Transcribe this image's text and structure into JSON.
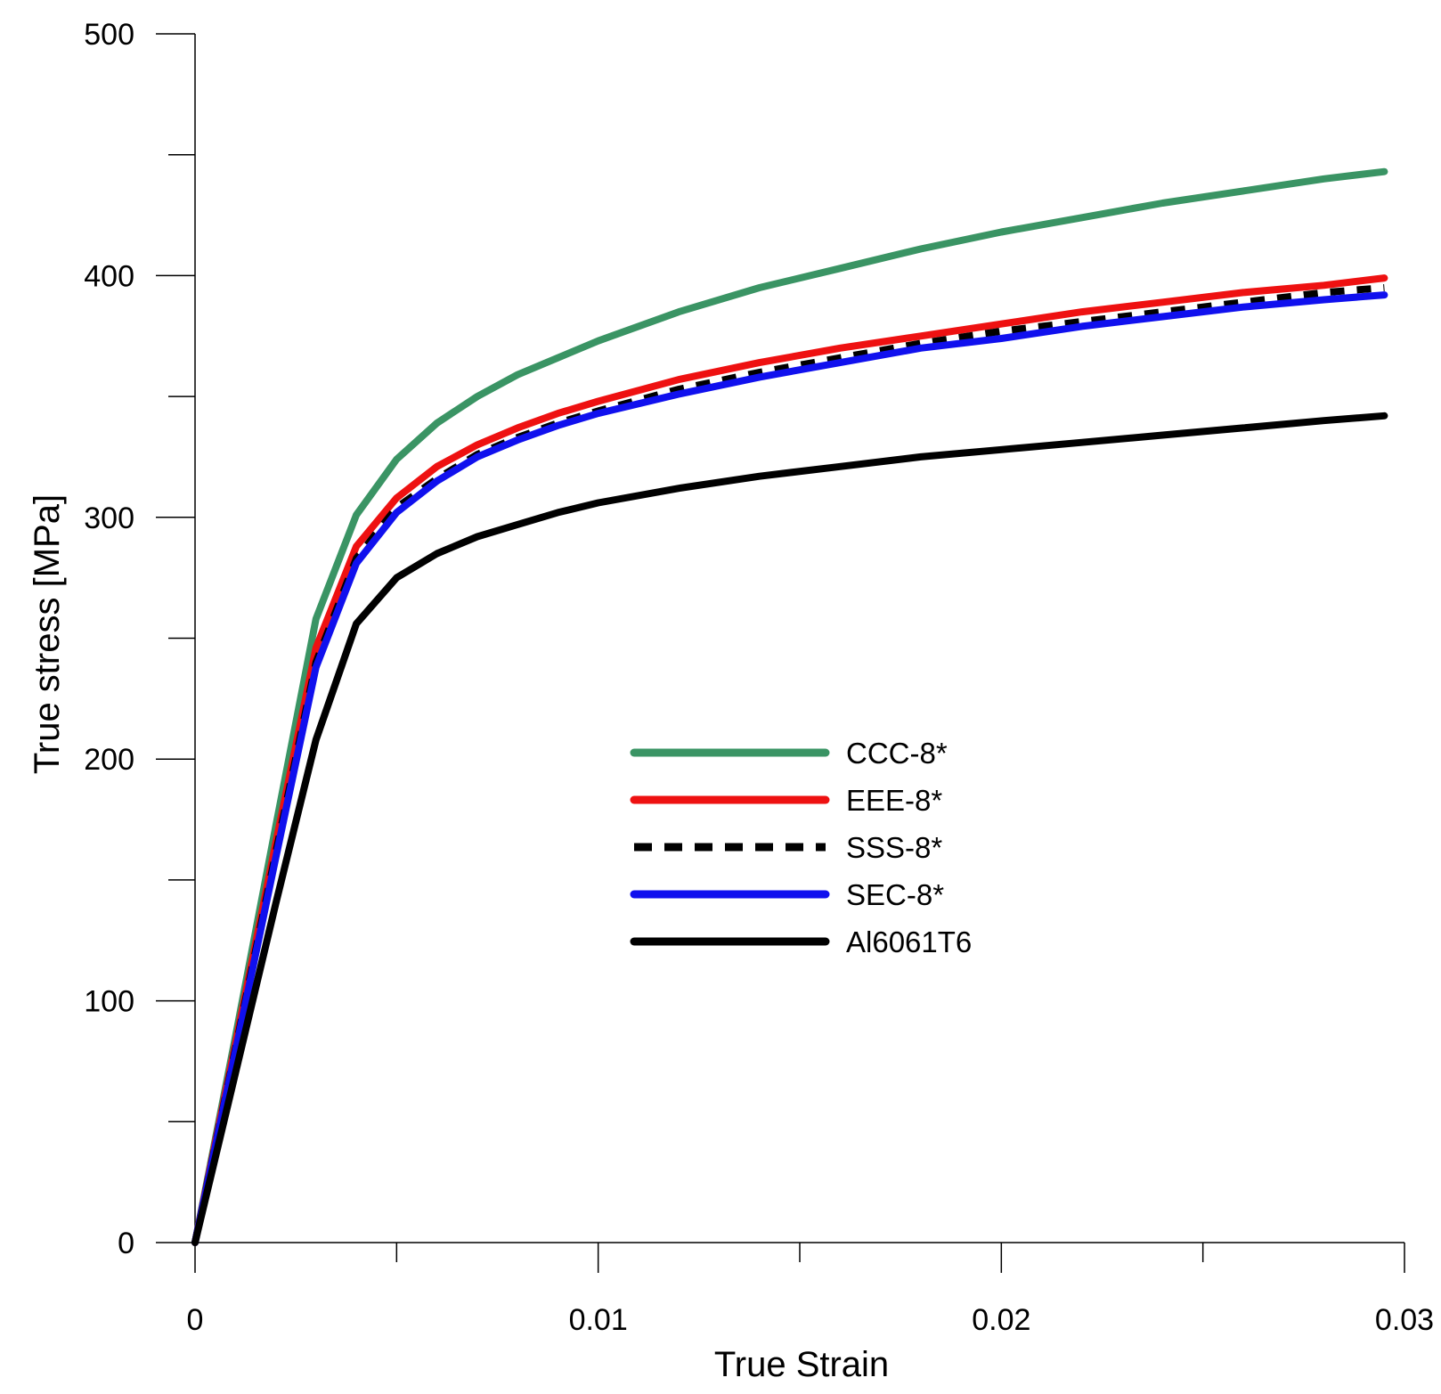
{
  "chart_data": {
    "type": "line",
    "title": "",
    "xlabel": "True Strain",
    "ylabel": "True stress [MPa]",
    "xlim": [
      0,
      0.03
    ],
    "ylim": [
      0,
      500
    ],
    "x_major_ticks": [
      0,
      0.01,
      0.02,
      0.03
    ],
    "x_tick_labels": [
      "0",
      "0.01",
      "0.02",
      "0.03"
    ],
    "x_minor_ticks": [
      0.005,
      0.015,
      0.025
    ],
    "y_major_ticks": [
      0,
      100,
      200,
      300,
      400,
      500
    ],
    "y_tick_labels": [
      "0",
      "100",
      "200",
      "300",
      "400",
      "500"
    ],
    "y_minor_ticks": [
      50,
      150,
      250,
      350,
      450
    ],
    "grid": false,
    "legend_position": "center-right",
    "series": [
      {
        "name": "CCC-8*",
        "color": "#3a9464",
        "style": "solid",
        "points": [
          [
            0,
            0
          ],
          [
            0.001,
            85
          ],
          [
            0.002,
            172
          ],
          [
            0.003,
            258
          ],
          [
            0.004,
            301
          ],
          [
            0.005,
            324
          ],
          [
            0.006,
            339
          ],
          [
            0.007,
            350
          ],
          [
            0.008,
            359
          ],
          [
            0.009,
            366
          ],
          [
            0.01,
            373
          ],
          [
            0.012,
            385
          ],
          [
            0.014,
            395
          ],
          [
            0.016,
            403
          ],
          [
            0.018,
            411
          ],
          [
            0.02,
            418
          ],
          [
            0.022,
            424
          ],
          [
            0.024,
            430
          ],
          [
            0.026,
            435
          ],
          [
            0.028,
            440
          ],
          [
            0.0295,
            443
          ]
        ]
      },
      {
        "name": "EEE-8*",
        "color": "#ee1111",
        "style": "solid",
        "points": [
          [
            0,
            0
          ],
          [
            0.001,
            82
          ],
          [
            0.002,
            165
          ],
          [
            0.003,
            246
          ],
          [
            0.004,
            288
          ],
          [
            0.005,
            308
          ],
          [
            0.006,
            321
          ],
          [
            0.007,
            330
          ],
          [
            0.008,
            337
          ],
          [
            0.009,
            343
          ],
          [
            0.01,
            348
          ],
          [
            0.012,
            357
          ],
          [
            0.014,
            364
          ],
          [
            0.016,
            370
          ],
          [
            0.018,
            375
          ],
          [
            0.02,
            380
          ],
          [
            0.022,
            385
          ],
          [
            0.024,
            389
          ],
          [
            0.026,
            393
          ],
          [
            0.028,
            396
          ],
          [
            0.0295,
            399
          ]
        ]
      },
      {
        "name": "SSS-8*",
        "color": "#000000",
        "style": "dashed",
        "points": [
          [
            0,
            0
          ],
          [
            0.001,
            80
          ],
          [
            0.002,
            161
          ],
          [
            0.003,
            240
          ],
          [
            0.004,
            283
          ],
          [
            0.005,
            304
          ],
          [
            0.006,
            316
          ],
          [
            0.007,
            326
          ],
          [
            0.008,
            333
          ],
          [
            0.009,
            339
          ],
          [
            0.01,
            344
          ],
          [
            0.012,
            353
          ],
          [
            0.014,
            360
          ],
          [
            0.016,
            366
          ],
          [
            0.018,
            372
          ],
          [
            0.02,
            377
          ],
          [
            0.022,
            381
          ],
          [
            0.024,
            385
          ],
          [
            0.026,
            389
          ],
          [
            0.028,
            393
          ],
          [
            0.0295,
            395
          ]
        ]
      },
      {
        "name": "SEC-8*",
        "color": "#1010ee",
        "style": "solid",
        "points": [
          [
            0,
            0
          ],
          [
            0.001,
            79
          ],
          [
            0.002,
            159
          ],
          [
            0.003,
            238
          ],
          [
            0.004,
            281
          ],
          [
            0.005,
            302
          ],
          [
            0.006,
            315
          ],
          [
            0.007,
            325
          ],
          [
            0.008,
            332
          ],
          [
            0.009,
            338
          ],
          [
            0.01,
            343
          ],
          [
            0.012,
            351
          ],
          [
            0.014,
            358
          ],
          [
            0.016,
            364
          ],
          [
            0.018,
            370
          ],
          [
            0.02,
            374
          ],
          [
            0.022,
            379
          ],
          [
            0.024,
            383
          ],
          [
            0.026,
            387
          ],
          [
            0.028,
            390
          ],
          [
            0.0295,
            392
          ]
        ]
      },
      {
        "name": "Al6061T6",
        "color": "#000000",
        "style": "solid",
        "points": [
          [
            0,
            0
          ],
          [
            0.001,
            70
          ],
          [
            0.002,
            140
          ],
          [
            0.003,
            208
          ],
          [
            0.004,
            256
          ],
          [
            0.005,
            275
          ],
          [
            0.006,
            285
          ],
          [
            0.007,
            292
          ],
          [
            0.008,
            297
          ],
          [
            0.009,
            302
          ],
          [
            0.01,
            306
          ],
          [
            0.012,
            312
          ],
          [
            0.014,
            317
          ],
          [
            0.016,
            321
          ],
          [
            0.018,
            325
          ],
          [
            0.02,
            328
          ],
          [
            0.022,
            331
          ],
          [
            0.024,
            334
          ],
          [
            0.026,
            337
          ],
          [
            0.028,
            340
          ],
          [
            0.0295,
            342
          ]
        ]
      }
    ]
  }
}
